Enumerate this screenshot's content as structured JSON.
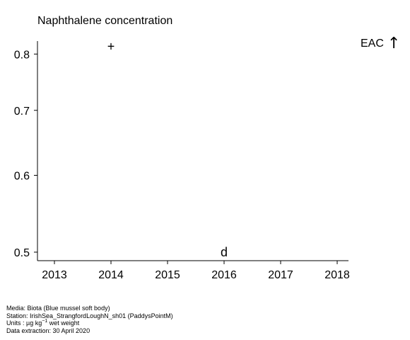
{
  "chart_data": {
    "type": "scatter",
    "title": "Naphthalene concentration",
    "xlabel": "",
    "ylabel": "",
    "x_ticks": [
      2013,
      2014,
      2015,
      2016,
      2017,
      2018
    ],
    "y_ticks": [
      0.5,
      0.6,
      0.7,
      0.8
    ],
    "xlim": [
      2012.7,
      2018.2
    ],
    "ylim": [
      0.49,
      0.825
    ],
    "y_scale": "log",
    "grid": false,
    "points": [
      {
        "x": 2014,
        "y": 0.815,
        "marker": "+"
      },
      {
        "x": 2016,
        "y": 0.5,
        "marker": "d"
      }
    ],
    "eac_label": "EAC",
    "eac_arrow": "↑"
  },
  "footer": {
    "media": "Media: Biota (Blue mussel soft body)",
    "station": "Station: IrishSea_StrangfordLoughN_sh01 (PaddysPointM)",
    "units_prefix": "Units : µg kg",
    "units_sup": "−1",
    "units_suffix": " wet weight",
    "extraction": "Data extraction: 30 April 2020"
  }
}
